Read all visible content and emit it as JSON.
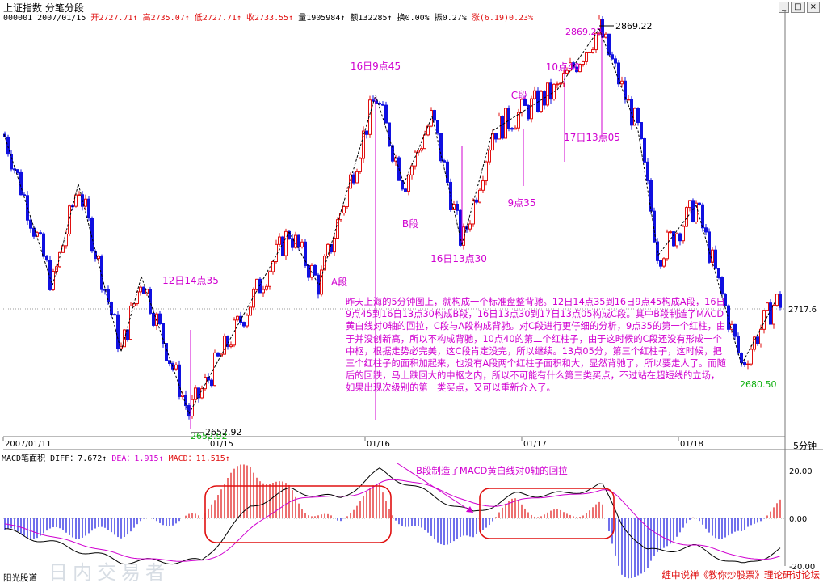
{
  "window": {
    "title": "上证指数 分笔分段",
    "buttons": [
      "_",
      "□",
      "×"
    ]
  },
  "quote_bar": {
    "code_date": "000001 2007/01/15",
    "open": "开2727.71↑",
    "high": "高2735.07↑",
    "low": "低2727.71↑",
    "close": "收2733.55↑",
    "volume": "量1905984↑",
    "amount": "额132285↑",
    "turnover": "换0.00%",
    "amplitude": "振0.27%",
    "change": "涨(6.19)0.23%"
  },
  "chart_data": [
    {
      "type": "line",
      "title": "上证指数 分笔分段",
      "price_range": [
        2640,
        2880
      ],
      "grid": false,
      "reference_level": {
        "value": 2717.6,
        "label": "2717.6"
      },
      "x_date_labels": [
        "2007/01/11",
        "01/15",
        "01/16",
        "01/17",
        "01/18"
      ],
      "x_period": "5分钟",
      "stroke_points": [
        {
          "label": "",
          "value": 2810
        },
        {
          "label": "",
          "value": 2725
        },
        {
          "label": "",
          "value": 2782
        },
        {
          "label": "12日14点35",
          "value": 2688
        },
        {
          "label": "",
          "value": 2730
        },
        {
          "label": "2652.92",
          "value": 2652.92
        },
        {
          "label": "",
          "value": 2755
        },
        {
          "label": "A段",
          "value": 2725
        },
        {
          "label": "16日9点45",
          "value": 2832
        },
        {
          "label": "B段",
          "value": 2782
        },
        {
          "label": "C段",
          "value": 2820
        },
        {
          "label": "16日13点30",
          "value": 2748
        },
        {
          "label": "9点35",
          "value": 2812
        },
        {
          "label": "10点40",
          "value": 2835
        },
        {
          "label": "2869.22",
          "value": 2869.22
        },
        {
          "label": "17日13点05",
          "value": 2812
        },
        {
          "label": "",
          "value": 2742
        },
        {
          "label": "",
          "value": 2770
        },
        {
          "label": "2680.50",
          "value": 2680.5
        },
        {
          "label": "",
          "value": 2716
        }
      ],
      "annotations": [
        "16日9点45",
        "10点40",
        "C段",
        "17日13点05",
        "9点35",
        "B段",
        "16日13点30",
        "A段",
        "12日14点35"
      ],
      "price_labels": {
        "high": "2869.22",
        "high_tag": "2869.22",
        "low": "2652.92",
        "low_tag": "2652.92",
        "low2": "2680.50"
      }
    },
    {
      "type": "line",
      "title": "MACD笔面积",
      "series": [
        {
          "name": "DIFF",
          "value": 7.672,
          "color": "#000000"
        },
        {
          "name": "DEA",
          "value": 1.915,
          "color": "#d000d0"
        },
        {
          "name": "MACD",
          "value": 11.515,
          "color": "#e01010"
        }
      ],
      "ylim": [
        -20,
        20
      ],
      "y_ticks": [
        "20.00",
        "0.00",
        "-20.00"
      ],
      "annotation": "B段制造了MACD黄白线对0轴的回拉"
    }
  ],
  "commentary": "昨天上海的5分钟图上，就构成一个标准盘整背驰。12日14点35到16日9点45构成A段，16日9点45到16日13点30构成B段，16日13点30到17日13点05构成C段。其中B段制造了MACD黄白线对0轴的回拉，C段与A段构成背驰。对C段进行更仔细的分析，9点35的第一个红柱，由于并没创新高，所以不构成背驰，10点40的第二个红柱子，由于这时候的C段还没有形成一个中枢，根据走势必完美，这C段肯定没完，所以继续。13点05分，第三个红柱子，这时候，把三个红柱子的面积加起来，也没有A段两个红柱子面积和大，显然背驰了，所以要走人了。而随后的回跌，马上跌回大的中枢之内，所以不可能有什么第三类买点，不过站在超短线的立场，如果出现次级别的第一类买点，又可以重新介入了。",
  "macd_header": {
    "name": "MACD笔面积",
    "diff": "DIFF：7.672↑",
    "dea": "DEA：1.915↑",
    "macd": "MACD：11.515↑"
  },
  "footer": {
    "left": "阳光股道",
    "watermark": "日内交易者",
    "right": "缠中说禅《教你炒股票》理论研讨论坛"
  },
  "colors": {
    "up": "#e01010",
    "down": "#1010e0",
    "annotation": "#d000d0",
    "low_label": "#10b010",
    "ellipse": "#e01010"
  }
}
